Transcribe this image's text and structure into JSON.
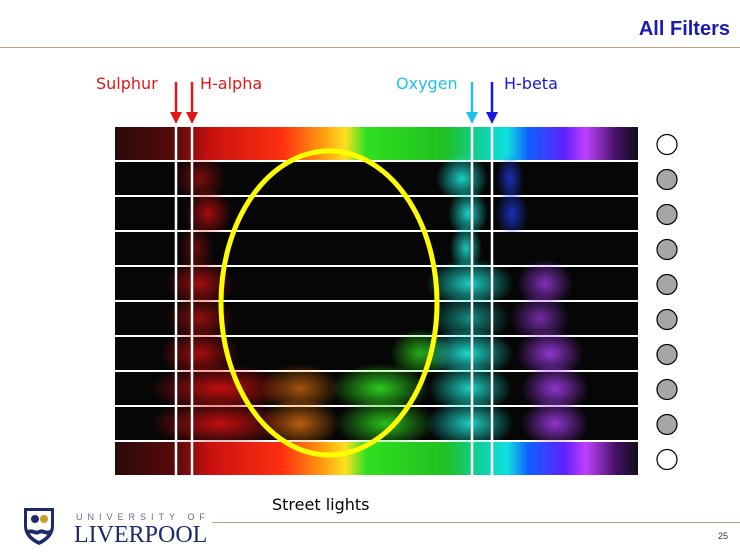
{
  "slide": {
    "title": "All Filters",
    "page_number": "25"
  },
  "lines": {
    "sulphur": {
      "label": "Sulphur",
      "color": "#e01818"
    },
    "h_alpha": {
      "label": "H-alpha",
      "color": "#e01818"
    },
    "oxygen": {
      "label": "Oxygen",
      "color": "#20c0f0"
    },
    "h_beta": {
      "label": "H-beta",
      "color": "#1818e0"
    }
  },
  "annotation": {
    "label": "Street lights",
    "ellipse_color": "#ffff00"
  },
  "filter_indicators": [
    "empty",
    "filled",
    "filled",
    "filled",
    "filled",
    "filled",
    "filled",
    "filled",
    "filled",
    "empty"
  ],
  "logo": {
    "top": "UNIVERSITY OF",
    "main": "LIVERPOOL"
  },
  "colors": {
    "title": "#1a1ab4",
    "rule": "#c8a078"
  }
}
